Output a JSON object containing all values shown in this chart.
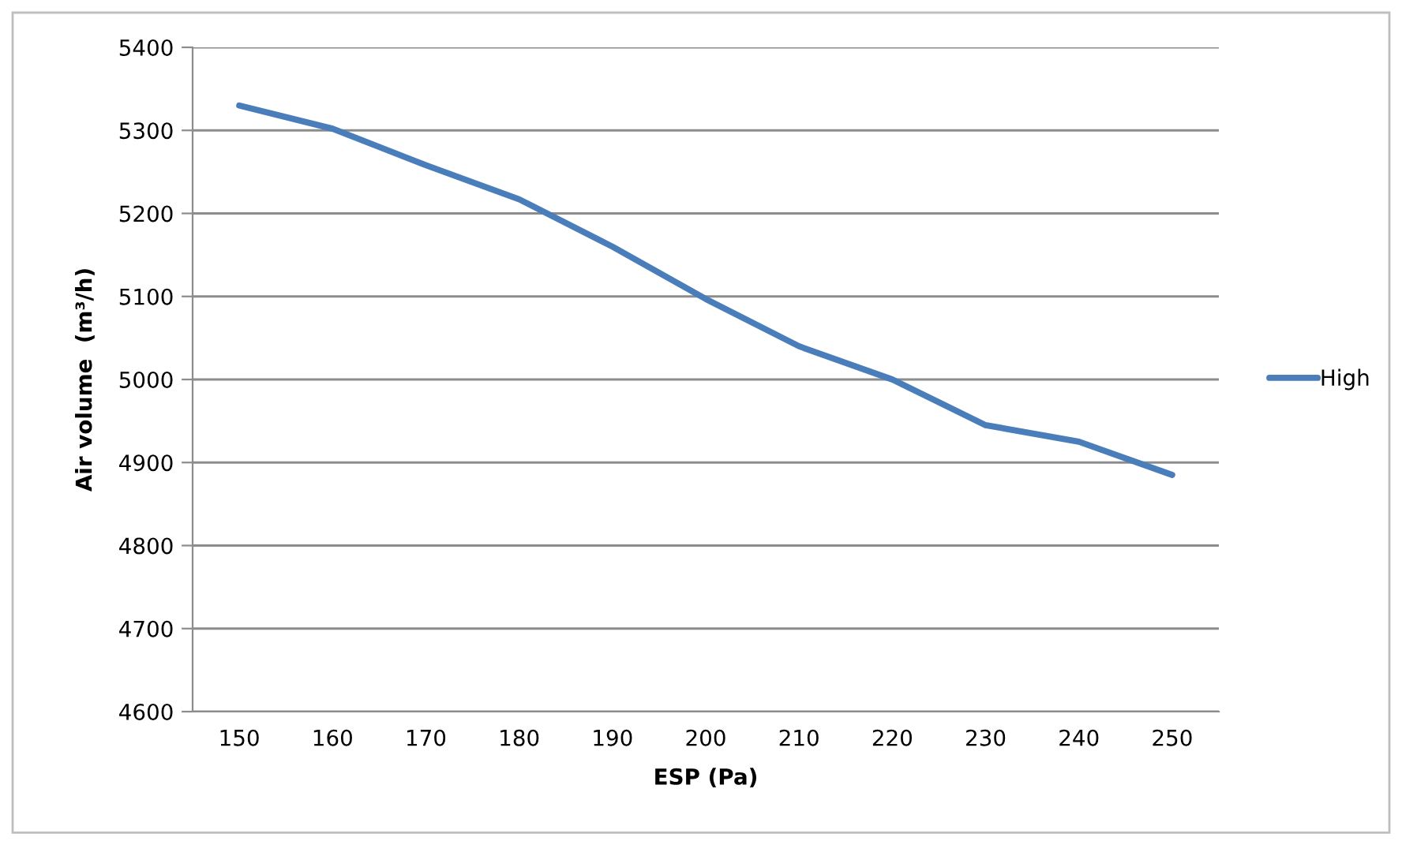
{
  "chart_data": {
    "type": "line",
    "xlabel": "ESP (Pa)",
    "ylabel": "Air volume  (m³/h)",
    "categories": [
      "150",
      "160",
      "170",
      "180",
      "190",
      "200",
      "210",
      "220",
      "230",
      "240",
      "250"
    ],
    "series": [
      {
        "name": "High",
        "color": "#4a7ebb",
        "values": [
          5330,
          5302,
          5258,
          5217,
          5160,
          5097,
          5040,
          5000,
          4945,
          4925,
          4885
        ]
      }
    ],
    "ylim": [
      4600,
      5400
    ],
    "yticks": [
      4600,
      4700,
      4800,
      4900,
      5000,
      5100,
      5200,
      5300,
      5400
    ],
    "grid": "y",
    "legend": "right",
    "marker": "none",
    "line_style": "solid"
  }
}
